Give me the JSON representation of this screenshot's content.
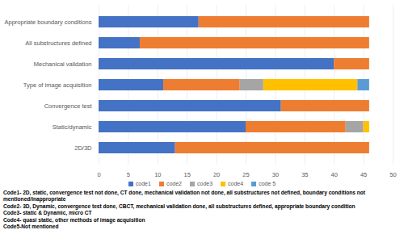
{
  "chart_data": {
    "type": "bar",
    "orientation": "horizontal",
    "stacked": true,
    "grid": true,
    "legend": "bottom",
    "categories": [
      "Appropriate boundary conditions",
      "All substructures defined",
      "Mechanical validation",
      "Type of image acquisition",
      "Convergence test",
      "Static/dynamic",
      "2D/3D"
    ],
    "series": [
      {
        "name": "code1",
        "color": "#4472c4",
        "values": [
          17,
          7,
          40,
          11,
          31,
          25,
          13
        ]
      },
      {
        "name": "code2",
        "color": "#ed7d31",
        "values": [
          29,
          39,
          6,
          13,
          15,
          17,
          33
        ]
      },
      {
        "name": "code3",
        "color": "#a5a5a5",
        "values": [
          0,
          0,
          0,
          4,
          0,
          3,
          0
        ]
      },
      {
        "name": "code4",
        "color": "#ffc000",
        "values": [
          0,
          0,
          0,
          16,
          0,
          1,
          0
        ]
      },
      {
        "name": "code 5",
        "color": "#5b9bd5",
        "values": [
          0,
          0,
          0,
          2,
          0,
          0,
          0
        ]
      }
    ],
    "xlim": [
      0,
      50
    ],
    "xticks": [
      0,
      5,
      10,
      15,
      20,
      25,
      30,
      35,
      40,
      45,
      50
    ],
    "annotations": [
      "Code1- 2D, static, convergence test not done, CT done, mechanical validation not done, all substructures not defined, boundary conditions not mentioned/inappropriate",
      "Code2- 3D, Dynamic, convergence test done, CBCT, mechanical validation done, all substructures defined, appropriate boundary condition",
      "Code3- static & Dynamic, micro CT",
      "Code4- quasi static, other methods of image acquisition",
      "Code5-Not mentioned"
    ]
  }
}
